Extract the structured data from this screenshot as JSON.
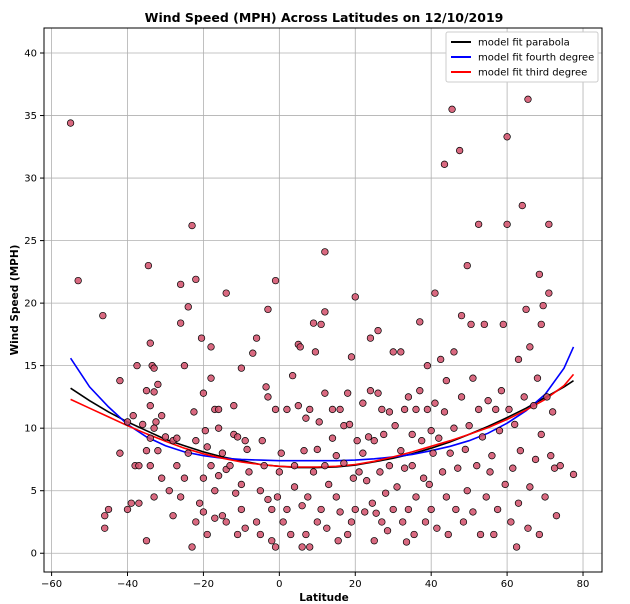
{
  "chart_data": {
    "type": "scatter",
    "title": "Wind Speed (MPH) Across Latitudes on 12/10/2019",
    "xlabel": "Latitude",
    "ylabel": "Wind Speed (MPH)",
    "xlim": [
      -62,
      85
    ],
    "ylim": [
      -1.5,
      42
    ],
    "xticks": [
      -60,
      -40,
      -20,
      0,
      20,
      40,
      60,
      80
    ],
    "yticks": [
      0,
      5,
      10,
      15,
      20,
      25,
      30,
      35,
      40
    ],
    "grid": true,
    "legend_position": "top-right",
    "point_color": "#d24f6a",
    "scatter": [
      [
        -55,
        34.4
      ],
      [
        -53,
        21.8
      ],
      [
        -46.5,
        19
      ],
      [
        -46,
        2
      ],
      [
        -46,
        3
      ],
      [
        -45,
        3.5
      ],
      [
        -42,
        8
      ],
      [
        -42,
        13.8
      ],
      [
        -40,
        10.5
      ],
      [
        -40,
        3.5
      ],
      [
        -39,
        4
      ],
      [
        -38.5,
        11
      ],
      [
        -38,
        7
      ],
      [
        -37.5,
        15
      ],
      [
        -37,
        4
      ],
      [
        -37,
        7
      ],
      [
        -36,
        10.3
      ],
      [
        -35,
        13
      ],
      [
        -35,
        8.2
      ],
      [
        -35,
        1
      ],
      [
        -34.5,
        23
      ],
      [
        -34,
        16.8
      ],
      [
        -34,
        11.8
      ],
      [
        -34,
        7
      ],
      [
        -34,
        9.2
      ],
      [
        -33.5,
        15
      ],
      [
        -33,
        14.8
      ],
      [
        -33,
        12.9
      ],
      [
        -33,
        10
      ],
      [
        -33,
        4.5
      ],
      [
        -32.5,
        10.5
      ],
      [
        -32,
        13.5
      ],
      [
        -32,
        8.2
      ],
      [
        -31,
        11
      ],
      [
        -31,
        6
      ],
      [
        -30,
        9.3
      ],
      [
        -29,
        5
      ],
      [
        -28,
        3
      ],
      [
        -28,
        9
      ],
      [
        -27,
        7
      ],
      [
        -27,
        9.2
      ],
      [
        -26,
        18.4
      ],
      [
        -26,
        21.5
      ],
      [
        -26,
        4.5
      ],
      [
        -25,
        6
      ],
      [
        -25,
        15
      ],
      [
        -24,
        8
      ],
      [
        -24,
        19.7
      ],
      [
        -23,
        26.2
      ],
      [
        -23,
        0.5
      ],
      [
        -22.5,
        11.3
      ],
      [
        -22,
        21.9
      ],
      [
        -22,
        9
      ],
      [
        -22,
        2.5
      ],
      [
        -21,
        4
      ],
      [
        -20.5,
        17.2
      ],
      [
        -20,
        12.8
      ],
      [
        -20,
        3.3
      ],
      [
        -20,
        6
      ],
      [
        -19.5,
        9.8
      ],
      [
        -19,
        1.5
      ],
      [
        -19,
        8.5
      ],
      [
        -18,
        14
      ],
      [
        -18,
        16.5
      ],
      [
        -18,
        7
      ],
      [
        -17,
        11.5
      ],
      [
        -17,
        2.8
      ],
      [
        -17,
        5
      ],
      [
        -16,
        10
      ],
      [
        -16,
        6.2
      ],
      [
        -16,
        11.5
      ],
      [
        -15,
        3
      ],
      [
        -15,
        8
      ],
      [
        -14,
        20.8
      ],
      [
        -14,
        2.5
      ],
      [
        -14,
        6.7
      ],
      [
        -13,
        7
      ],
      [
        -12,
        9.5
      ],
      [
        -12,
        11.8
      ],
      [
        -11.5,
        4.8
      ],
      [
        -11,
        1.5
      ],
      [
        -11,
        9.3
      ],
      [
        -10,
        14.8
      ],
      [
        -10,
        5.5
      ],
      [
        -10,
        3.5
      ],
      [
        -9,
        2
      ],
      [
        -9,
        9
      ],
      [
        -8.5,
        8.3
      ],
      [
        -8,
        6.5
      ],
      [
        -7,
        16
      ],
      [
        -6,
        17.2
      ],
      [
        -6,
        2.5
      ],
      [
        -5,
        5
      ],
      [
        -5,
        1.5
      ],
      [
        -4.5,
        9
      ],
      [
        -4,
        7
      ],
      [
        -3.5,
        13.3
      ],
      [
        -3,
        19.5
      ],
      [
        -3,
        12.5
      ],
      [
        -3,
        4.3
      ],
      [
        -2,
        3.5
      ],
      [
        -2,
        1
      ],
      [
        -1,
        11.5
      ],
      [
        -1,
        21.8
      ],
      [
        -1,
        0.5
      ],
      [
        -0.5,
        4.5
      ],
      [
        0,
        6.5
      ],
      [
        0.5,
        8
      ],
      [
        1,
        2.5
      ],
      [
        2,
        11.5
      ],
      [
        2,
        3.5
      ],
      [
        3,
        1.5
      ],
      [
        3.5,
        14.2
      ],
      [
        4,
        5.3
      ],
      [
        4,
        7
      ],
      [
        5,
        16.7
      ],
      [
        5,
        11.8
      ],
      [
        5.5,
        16.5
      ],
      [
        6,
        3.8
      ],
      [
        6,
        0.5
      ],
      [
        6.5,
        8.2
      ],
      [
        7,
        10.8
      ],
      [
        7,
        1.5
      ],
      [
        7.5,
        4.5
      ],
      [
        8,
        11.5
      ],
      [
        8,
        0.5
      ],
      [
        9,
        18.4
      ],
      [
        9,
        6.5
      ],
      [
        9.5,
        16.1
      ],
      [
        10,
        8.3
      ],
      [
        10,
        2.5
      ],
      [
        10.5,
        10.5
      ],
      [
        11,
        18.3
      ],
      [
        11,
        3.5
      ],
      [
        12,
        24.1
      ],
      [
        12,
        19.3
      ],
      [
        12,
        12.8
      ],
      [
        12,
        7
      ],
      [
        12.5,
        2
      ],
      [
        13,
        5.5
      ],
      [
        14,
        11.5
      ],
      [
        14,
        9.2
      ],
      [
        15,
        4.5
      ],
      [
        15,
        7.8
      ],
      [
        15.5,
        1
      ],
      [
        16,
        11.5
      ],
      [
        16,
        3.3
      ],
      [
        17,
        7.2
      ],
      [
        17,
        10.2
      ],
      [
        18,
        12.8
      ],
      [
        18,
        1.5
      ],
      [
        18.5,
        10.3
      ],
      [
        19,
        15.7
      ],
      [
        19,
        2.5
      ],
      [
        19.5,
        6
      ],
      [
        20,
        20.5
      ],
      [
        20,
        3.5
      ],
      [
        20.5,
        9
      ],
      [
        21,
        6.5
      ],
      [
        22,
        12
      ],
      [
        22,
        8
      ],
      [
        22.5,
        3.3
      ],
      [
        23,
        5.8
      ],
      [
        23.5,
        9.3
      ],
      [
        24,
        17.2
      ],
      [
        24,
        13
      ],
      [
        24.5,
        4
      ],
      [
        25,
        9
      ],
      [
        25,
        1
      ],
      [
        25.5,
        3.2
      ],
      [
        26,
        17.8
      ],
      [
        26,
        12.8
      ],
      [
        26.5,
        6.5
      ],
      [
        27,
        11.5
      ],
      [
        27,
        2.5
      ],
      [
        27.5,
        9.5
      ],
      [
        28,
        4.8
      ],
      [
        28.5,
        1.8
      ],
      [
        29,
        11.3
      ],
      [
        29,
        7
      ],
      [
        30,
        16.1
      ],
      [
        30,
        3.5
      ],
      [
        30.5,
        10.2
      ],
      [
        31,
        5.3
      ],
      [
        32,
        16.1
      ],
      [
        32,
        8.2
      ],
      [
        32.5,
        2.5
      ],
      [
        33,
        11.5
      ],
      [
        33,
        6.8
      ],
      [
        33.5,
        0.9
      ],
      [
        34,
        12.5
      ],
      [
        34,
        3.5
      ],
      [
        35,
        9.5
      ],
      [
        35,
        7
      ],
      [
        35.5,
        1.5
      ],
      [
        36,
        11.5
      ],
      [
        36,
        4.5
      ],
      [
        37,
        18.5
      ],
      [
        37,
        13
      ],
      [
        37.5,
        9
      ],
      [
        38,
        6
      ],
      [
        38.5,
        2.5
      ],
      [
        39,
        11.5
      ],
      [
        39,
        15
      ],
      [
        39.5,
        5.5
      ],
      [
        40,
        9.8
      ],
      [
        40,
        3.5
      ],
      [
        40.5,
        8
      ],
      [
        41,
        20.8
      ],
      [
        41,
        12
      ],
      [
        41.5,
        2
      ],
      [
        42,
        9.2
      ],
      [
        42.5,
        15.5
      ],
      [
        43,
        6.5
      ],
      [
        43.5,
        11.3
      ],
      [
        43.5,
        31.1
      ],
      [
        44,
        13.8
      ],
      [
        44,
        4.5
      ],
      [
        44.5,
        1.5
      ],
      [
        45,
        8
      ],
      [
        45.5,
        35.5
      ],
      [
        46,
        16.1
      ],
      [
        46,
        10
      ],
      [
        46.5,
        3.5
      ],
      [
        47,
        6.8
      ],
      [
        47.5,
        32.2
      ],
      [
        48,
        19
      ],
      [
        48,
        12.5
      ],
      [
        48.5,
        2.5
      ],
      [
        49,
        8.3
      ],
      [
        49.5,
        23
      ],
      [
        49.5,
        5
      ],
      [
        50,
        10.2
      ],
      [
        50.5,
        18.3
      ],
      [
        51,
        14
      ],
      [
        51,
        3.3
      ],
      [
        52,
        7
      ],
      [
        52.5,
        26.3
      ],
      [
        52.5,
        11.5
      ],
      [
        53,
        1.5
      ],
      [
        53.5,
        9.3
      ],
      [
        54,
        18.3
      ],
      [
        54.5,
        4.5
      ],
      [
        55,
        12.2
      ],
      [
        55.5,
        6.5
      ],
      [
        56,
        7.8
      ],
      [
        56.5,
        1.5
      ],
      [
        57,
        11.5
      ],
      [
        57.5,
        3.5
      ],
      [
        58,
        9.8
      ],
      [
        58.5,
        13
      ],
      [
        59,
        18.3
      ],
      [
        59.5,
        5.5
      ],
      [
        60,
        26.3
      ],
      [
        60,
        33.3
      ],
      [
        60.5,
        11.5
      ],
      [
        61,
        2.5
      ],
      [
        61.5,
        6.8
      ],
      [
        62,
        10.3
      ],
      [
        62.5,
        0.5
      ],
      [
        63,
        15.5
      ],
      [
        63,
        4
      ],
      [
        63.5,
        8.2
      ],
      [
        64,
        27.8
      ],
      [
        64.5,
        12.5
      ],
      [
        65,
        19.5
      ],
      [
        65.5,
        36.3
      ],
      [
        65.5,
        2
      ],
      [
        66,
        16.5
      ],
      [
        66,
        5.3
      ],
      [
        67,
        11.8
      ],
      [
        67.5,
        7.5
      ],
      [
        68,
        14
      ],
      [
        68.5,
        22.3
      ],
      [
        68.5,
        1.5
      ],
      [
        69,
        18.3
      ],
      [
        69,
        9.5
      ],
      [
        69.5,
        19.8
      ],
      [
        70,
        4.5
      ],
      [
        70.5,
        12.5
      ],
      [
        71,
        26.3
      ],
      [
        71,
        20.8
      ],
      [
        71.5,
        7.8
      ],
      [
        72,
        11.3
      ],
      [
        72.5,
        6.8
      ],
      [
        73,
        3
      ],
      [
        74,
        7
      ],
      [
        77.5,
        6.3
      ]
    ],
    "series": [
      {
        "name": "model fit parabola",
        "color": "#000000",
        "x": [
          -55,
          -50,
          -45,
          -40,
          -35,
          -30,
          -25,
          -20,
          -15,
          -10,
          -5,
          0,
          5,
          10,
          15,
          20,
          25,
          30,
          35,
          40,
          45,
          50,
          55,
          60,
          65,
          70,
          75,
          77.5
        ],
        "y": [
          13.2,
          12.2,
          11.3,
          10.5,
          9.8,
          9.1,
          8.6,
          8.1,
          7.7,
          7.4,
          7.1,
          6.95,
          6.85,
          6.85,
          6.9,
          7.05,
          7.3,
          7.6,
          7.95,
          8.4,
          8.9,
          9.5,
          10.15,
          10.85,
          11.6,
          12.45,
          13.3,
          13.8
        ]
      },
      {
        "name": "model fit fourth degree",
        "color": "#0000ff",
        "x": [
          -55,
          -50,
          -45,
          -40,
          -35,
          -30,
          -25,
          -20,
          -15,
          -10,
          -5,
          0,
          5,
          10,
          15,
          20,
          25,
          30,
          35,
          40,
          45,
          50,
          55,
          60,
          65,
          70,
          75,
          77.5
        ],
        "y": [
          15.6,
          13.3,
          11.7,
          10.3,
          9.3,
          8.6,
          8.1,
          7.8,
          7.6,
          7.5,
          7.45,
          7.4,
          7.4,
          7.4,
          7.4,
          7.45,
          7.55,
          7.7,
          7.9,
          8.2,
          8.55,
          9.0,
          9.6,
          10.4,
          11.4,
          12.7,
          14.8,
          16.5
        ]
      },
      {
        "name": "model fit third degree",
        "color": "#ff0000",
        "x": [
          -55,
          -50,
          -45,
          -40,
          -35,
          -30,
          -25,
          -20,
          -15,
          -10,
          -5,
          0,
          5,
          10,
          15,
          20,
          25,
          30,
          35,
          40,
          45,
          50,
          55,
          60,
          65,
          70,
          75,
          77.5
        ],
        "y": [
          12.3,
          11.6,
          10.9,
          10.2,
          9.55,
          8.95,
          8.4,
          7.95,
          7.6,
          7.3,
          7.1,
          6.95,
          6.9,
          6.9,
          6.95,
          7.1,
          7.35,
          7.7,
          8.1,
          8.55,
          9.0,
          9.5,
          10.05,
          10.7,
          11.45,
          12.3,
          13.4,
          14.3
        ]
      }
    ]
  }
}
